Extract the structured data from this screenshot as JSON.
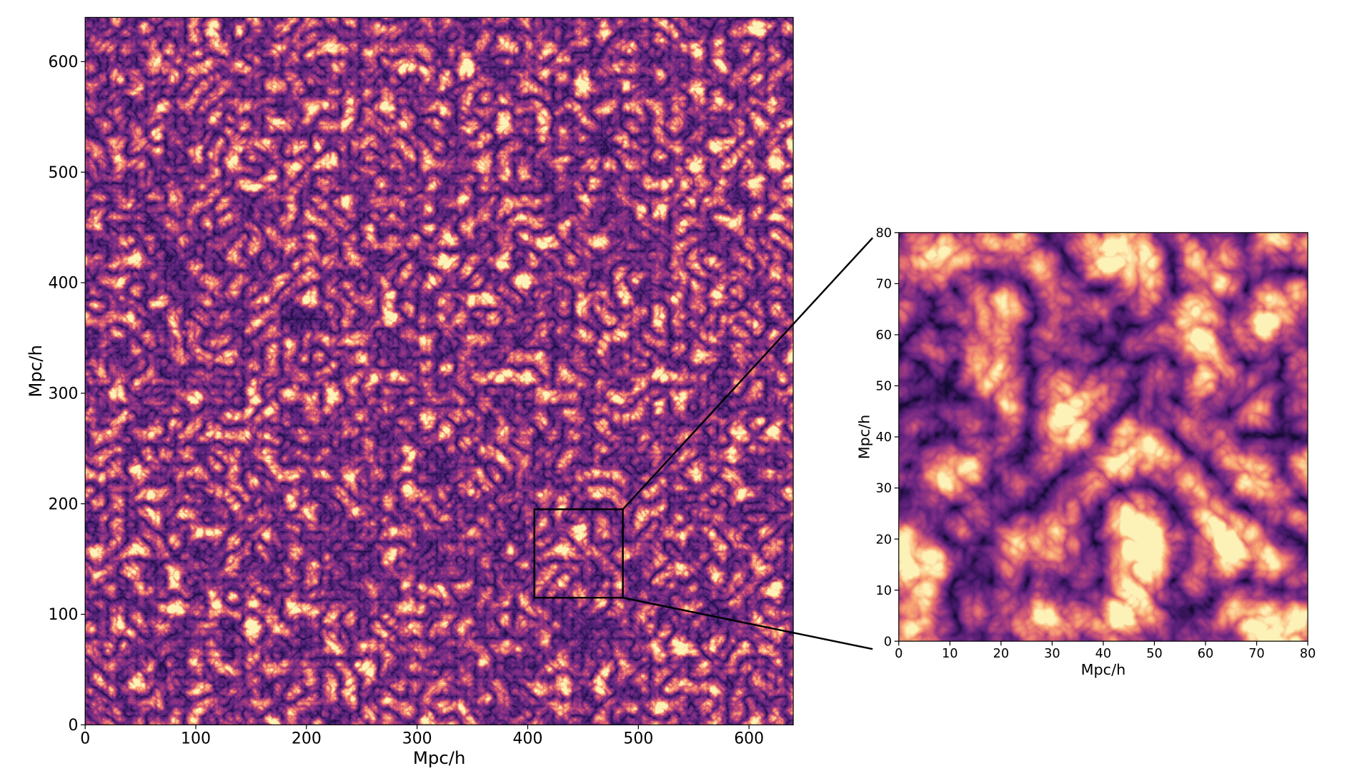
{
  "chart_data": [
    {
      "type": "heatmap",
      "colormap": "magma",
      "xlabel": "Mpc/h",
      "ylabel": "Mpc/h",
      "xlim": [
        0,
        640
      ],
      "ylim": [
        0,
        640
      ],
      "xticks": [
        0,
        100,
        200,
        300,
        400,
        500,
        600
      ],
      "yticks": [
        0,
        100,
        200,
        300,
        400,
        500,
        600
      ],
      "zoom_box": {
        "xlim": [
          406,
          486
        ],
        "ylim": [
          115,
          195
        ]
      }
    },
    {
      "type": "heatmap",
      "colormap": "magma",
      "xlabel": "Mpc/h",
      "ylabel": "Mpc/h",
      "xlim": [
        0,
        80
      ],
      "ylim": [
        0,
        80
      ],
      "xticks": [
        0,
        10,
        20,
        30,
        40,
        50,
        60,
        70,
        80
      ],
      "yticks": [
        0,
        10,
        20,
        30,
        40,
        50,
        60,
        70,
        80
      ]
    }
  ]
}
